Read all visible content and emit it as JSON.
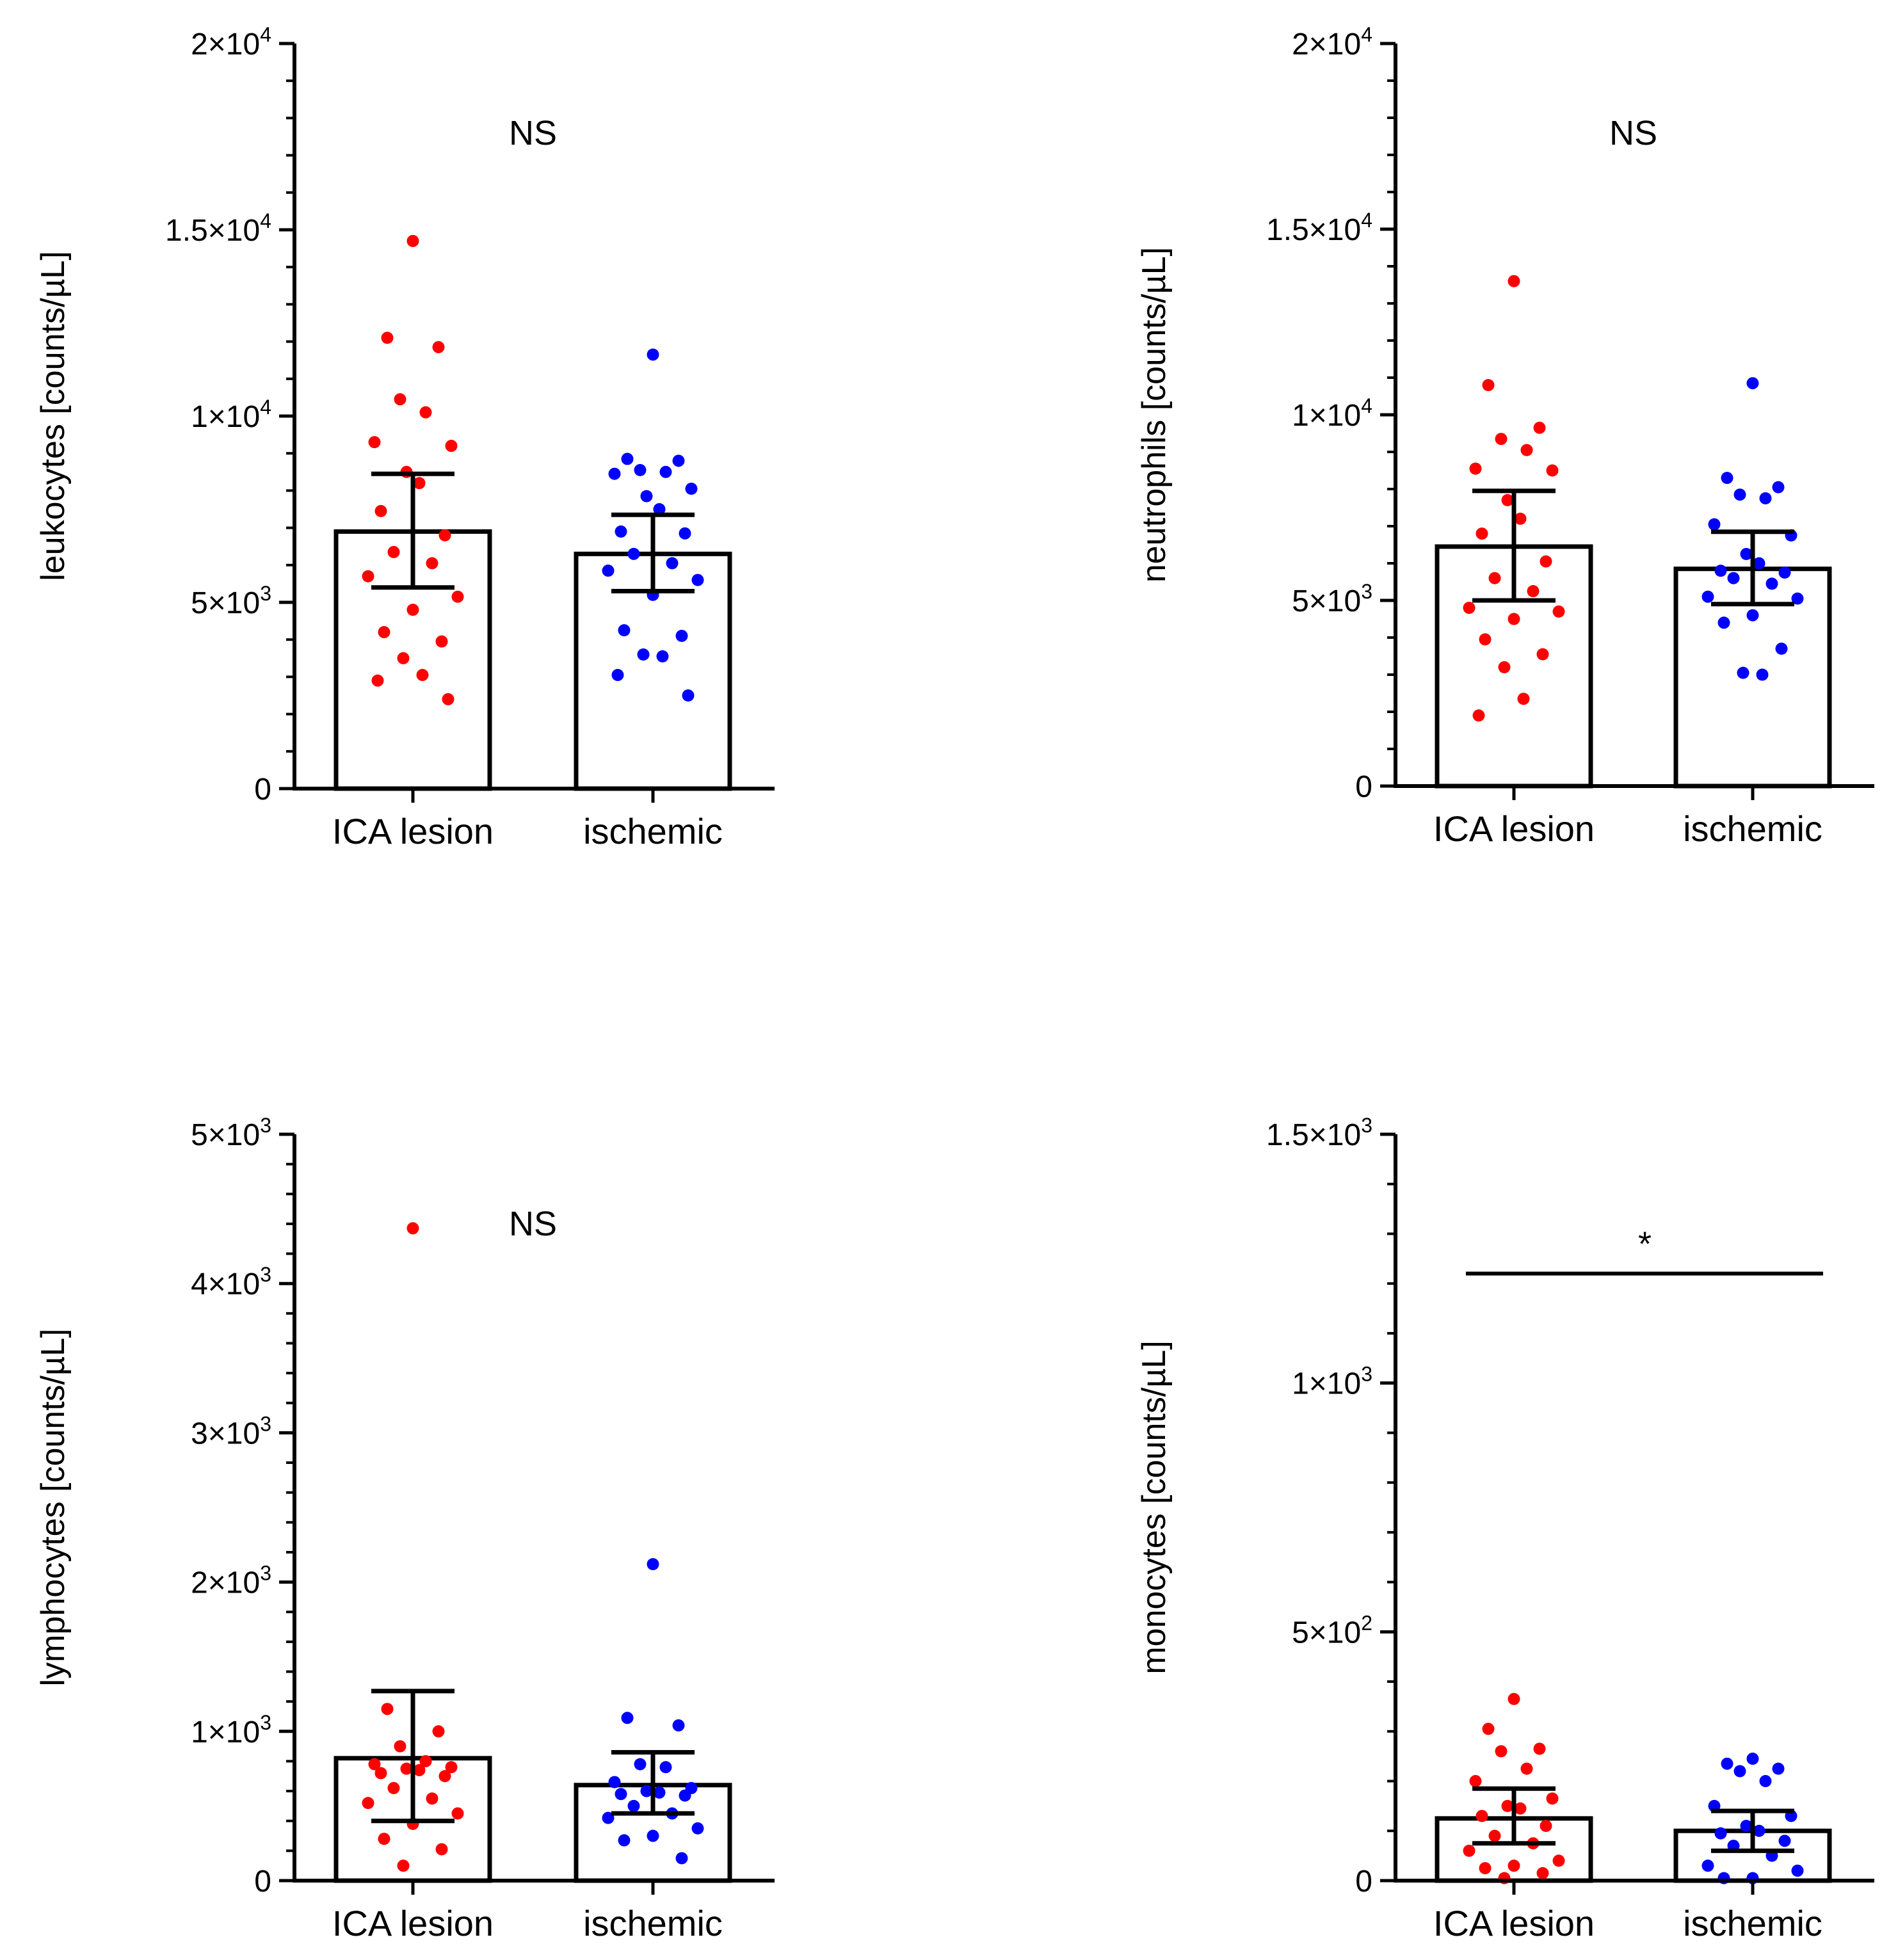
{
  "figure": {
    "colors": {
      "group1": "#ff0000",
      "group2": "#0000ff",
      "axis": "#000000"
    }
  },
  "chart_data": [
    {
      "type": "bar",
      "panel": "top-left",
      "ylabel": "leukocytes [counts/µL]",
      "categories": [
        "ICA lesion",
        "ischemic"
      ],
      "ylim": [
        0,
        20000
      ],
      "yticks": [
        {
          "value": 0,
          "mant": "0",
          "exp": ""
        },
        {
          "value": 5000,
          "mant": "5×10",
          "exp": "3"
        },
        {
          "value": 10000,
          "mant": "1×10",
          "exp": "4"
        },
        {
          "value": 15000,
          "mant": "1.5×10",
          "exp": "4"
        },
        {
          "value": 20000,
          "mant": "2×10",
          "exp": "4"
        }
      ],
      "minor_ticks": 4,
      "grid": false,
      "significance": {
        "text": "NS",
        "bracket": false
      },
      "series": [
        {
          "mean": 6900,
          "ci": [
            5400,
            8450
          ],
          "points": [
            14700,
            12100,
            11850,
            10450,
            10100,
            9300,
            9200,
            8500,
            8200,
            7450,
            6800,
            6350,
            6050,
            5700,
            5150,
            4800,
            4200,
            3950,
            3500,
            3050,
            2900,
            2400
          ]
        },
        {
          "mean": 6300,
          "ci": [
            5300,
            7350
          ],
          "points": [
            11650,
            8850,
            8800,
            8550,
            8500,
            8450,
            8050,
            7850,
            7500,
            6900,
            6850,
            6300,
            6050,
            5850,
            5600,
            5200,
            4250,
            4100,
            3600,
            3550,
            3050,
            2500
          ]
        }
      ]
    },
    {
      "type": "bar",
      "panel": "top-right",
      "ylabel": "neutrophils [counts/µL]",
      "categories": [
        "ICA lesion",
        "ischemic"
      ],
      "ylim": [
        0,
        20000
      ],
      "yticks": [
        {
          "value": 0,
          "mant": "0",
          "exp": ""
        },
        {
          "value": 5000,
          "mant": "5×10",
          "exp": "3"
        },
        {
          "value": 10000,
          "mant": "1×10",
          "exp": "4"
        },
        {
          "value": 15000,
          "mant": "1.5×10",
          "exp": "4"
        },
        {
          "value": 20000,
          "mant": "2×10",
          "exp": "4"
        }
      ],
      "minor_ticks": 4,
      "grid": false,
      "significance": {
        "text": "NS",
        "bracket": false
      },
      "series": [
        {
          "mean": 6450,
          "ci": [
            5000,
            7950
          ],
          "points": [
            13600,
            10800,
            9650,
            9350,
            9050,
            8550,
            8500,
            7700,
            7200,
            6800,
            6050,
            5600,
            5250,
            4800,
            4700,
            4500,
            3950,
            3550,
            3200,
            2350,
            1900
          ]
        },
        {
          "mean": 5850,
          "ci": [
            4900,
            6850
          ],
          "points": [
            10850,
            8300,
            8050,
            7850,
            7750,
            7050,
            6750,
            6250,
            6000,
            5800,
            5750,
            5600,
            5450,
            5100,
            5050,
            4600,
            4400,
            3700,
            3050,
            3000
          ]
        }
      ]
    },
    {
      "type": "bar",
      "panel": "bottom-left",
      "ylabel": "lymphocytes [counts/µL]",
      "categories": [
        "ICA lesion",
        "ischemic"
      ],
      "ylim": [
        0,
        5000
      ],
      "yticks": [
        {
          "value": 0,
          "mant": "0",
          "exp": ""
        },
        {
          "value": 1000,
          "mant": "1×10",
          "exp": "3"
        },
        {
          "value": 2000,
          "mant": "2×10",
          "exp": "3"
        },
        {
          "value": 3000,
          "mant": "3×10",
          "exp": "3"
        },
        {
          "value": 4000,
          "mant": "4×10",
          "exp": "3"
        },
        {
          "value": 5000,
          "mant": "5×10",
          "exp": "3"
        }
      ],
      "minor_ticks": 4,
      "grid": false,
      "significance": {
        "text": "NS",
        "bracket": false
      },
      "series": [
        {
          "mean": 820,
          "ci": [
            400,
            1270
          ],
          "points": [
            4370,
            1150,
            1000,
            900,
            800,
            780,
            760,
            750,
            740,
            720,
            700,
            620,
            550,
            520,
            450,
            380,
            280,
            210,
            100
          ]
        },
        {
          "mean": 640,
          "ci": [
            450,
            860
          ],
          "points": [
            2120,
            1090,
            1040,
            780,
            760,
            660,
            620,
            600,
            590,
            580,
            570,
            500,
            450,
            420,
            350,
            300,
            270,
            150
          ]
        }
      ]
    },
    {
      "type": "bar",
      "panel": "bottom-right",
      "ylabel": "monocytes [counts/µL]",
      "categories": [
        "ICA lesion",
        "ischemic"
      ],
      "ylim": [
        0,
        1500
      ],
      "yticks": [
        {
          "value": 0,
          "mant": "0",
          "exp": ""
        },
        {
          "value": 500,
          "mant": "5×10",
          "exp": "2"
        },
        {
          "value": 1000,
          "mant": "1×10",
          "exp": "3"
        },
        {
          "value": 1500,
          "mant": "1.5×10",
          "exp": "3"
        }
      ],
      "minor_ticks": 4,
      "grid": false,
      "significance": {
        "text": "*",
        "bracket": true,
        "bracket_value": 1220
      },
      "series": [
        {
          "mean": 125,
          "ci": [
            75,
            185
          ],
          "points": [
            365,
            305,
            265,
            260,
            225,
            200,
            165,
            150,
            145,
            130,
            110,
            90,
            75,
            60,
            40,
            30,
            25,
            15,
            5
          ]
        },
        {
          "mean": 100,
          "ci": [
            60,
            140
          ],
          "points": [
            245,
            235,
            225,
            220,
            200,
            150,
            130,
            110,
            100,
            95,
            80,
            70,
            50,
            30,
            20,
            5,
            5
          ]
        }
      ]
    }
  ]
}
